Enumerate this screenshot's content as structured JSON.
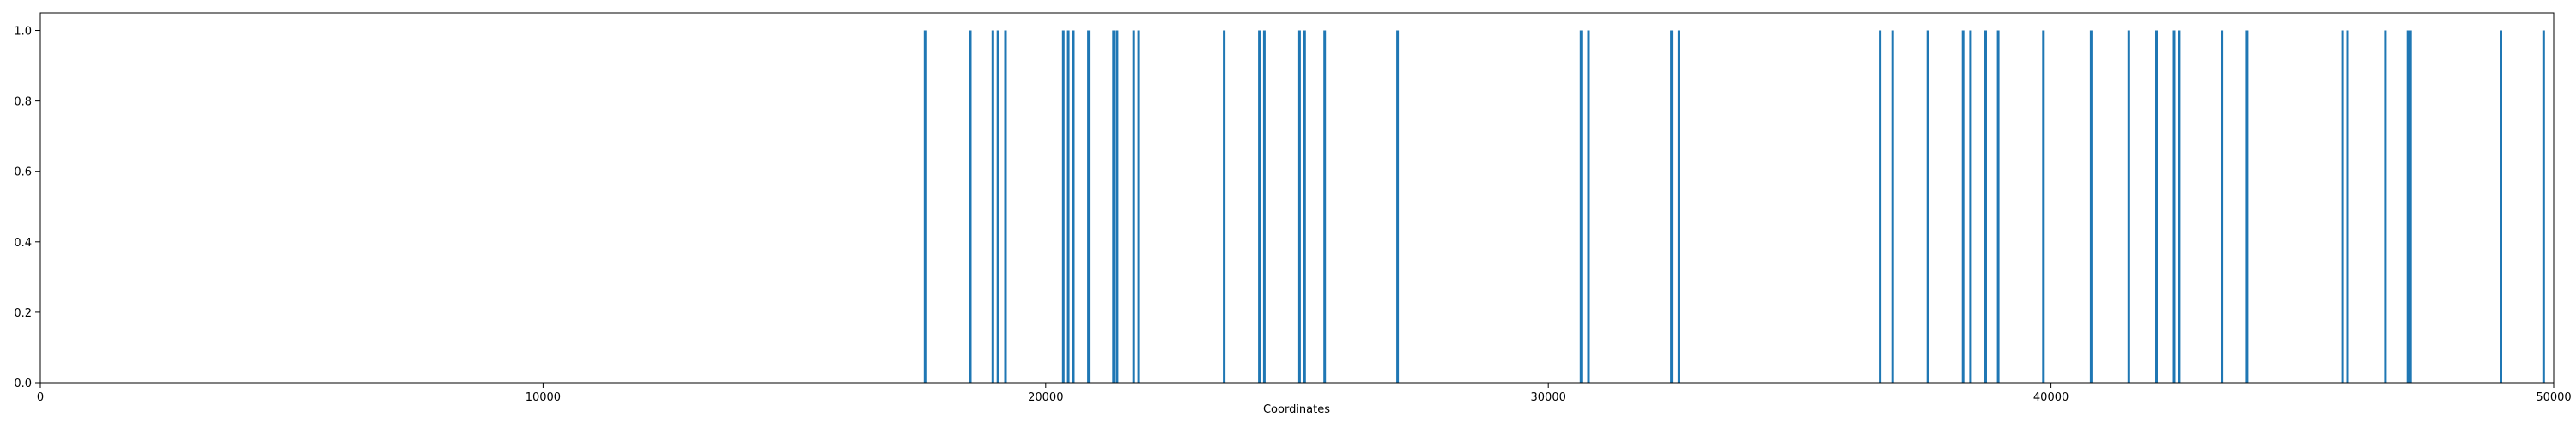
{
  "chart_data": {
    "type": "bar",
    "title": "",
    "xlabel": "Coordinates",
    "ylabel": "",
    "xlim": [
      0,
      50000
    ],
    "ylim": [
      0,
      1.05
    ],
    "grid": false,
    "legend": "none",
    "color": "#1f77b4",
    "x_ticks": [
      0,
      10000,
      20000,
      30000,
      40000,
      50000
    ],
    "x_tick_labels": [
      "0",
      "10000",
      "20000",
      "30000",
      "40000",
      "50000"
    ],
    "y_ticks": [
      0.0,
      0.2,
      0.4,
      0.6,
      0.8,
      1.0
    ],
    "y_tick_labels": [
      "0.0",
      "0.2",
      "0.4",
      "0.6",
      "0.8",
      "1.0"
    ],
    "x": [
      17600,
      18500,
      18950,
      19050,
      19200,
      20350,
      20450,
      20550,
      20850,
      21350,
      21420,
      21750,
      21850,
      23550,
      24250,
      24350,
      25050,
      25150,
      25550,
      27000,
      30650,
      30800,
      32450,
      32600,
      36600,
      36850,
      37550,
      38250,
      38400,
      38700,
      38950,
      39850,
      40800,
      41550,
      42100,
      42450,
      42550,
      43400,
      43900,
      45800,
      45900,
      46650,
      47100,
      47150,
      48950,
      49800
    ],
    "values": [
      1,
      1,
      1,
      1,
      1,
      1,
      1,
      1,
      1,
      1,
      1,
      1,
      1,
      1,
      1,
      1,
      1,
      1,
      1,
      1,
      1,
      1,
      1,
      1,
      1,
      1,
      1,
      1,
      1,
      1,
      1,
      1,
      1,
      1,
      1,
      1,
      1,
      1,
      1,
      1,
      1,
      1,
      1,
      1,
      1,
      1
    ]
  }
}
